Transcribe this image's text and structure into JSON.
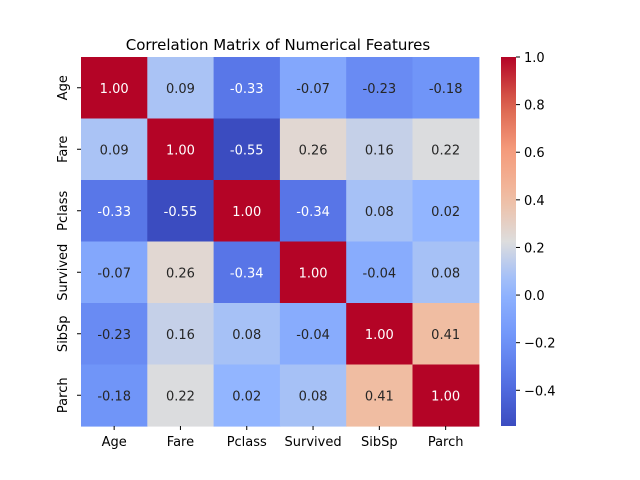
{
  "chart_data": {
    "type": "heatmap",
    "title": "Correlation Matrix of Numerical Features",
    "xlabel": "",
    "ylabel": "",
    "x_categories": [
      "Age",
      "Fare",
      "Pclass",
      "Survived",
      "SibSp",
      "Parch"
    ],
    "y_categories": [
      "Age",
      "Fare",
      "Pclass",
      "Survived",
      "SibSp",
      "Parch"
    ],
    "values": [
      [
        1.0,
        0.09,
        -0.33,
        -0.07,
        -0.23,
        -0.18
      ],
      [
        0.09,
        1.0,
        -0.55,
        0.26,
        0.16,
        0.22
      ],
      [
        -0.33,
        -0.55,
        1.0,
        -0.34,
        0.08,
        0.02
      ],
      [
        -0.07,
        0.26,
        -0.34,
        1.0,
        -0.04,
        0.08
      ],
      [
        -0.23,
        0.16,
        0.08,
        -0.04,
        1.0,
        0.41
      ],
      [
        -0.18,
        0.22,
        0.02,
        0.08,
        0.41,
        1.0
      ]
    ],
    "value_format": "2 decimals",
    "colormap": "coolwarm",
    "colorbar": {
      "range": [
        -0.55,
        1.0
      ],
      "ticks": [
        -0.4,
        -0.2,
        0.0,
        0.2,
        0.4,
        0.6,
        0.8,
        1.0
      ],
      "tick_labels": [
        "−0.4",
        "−0.2",
        "0.0",
        "0.2",
        "0.4",
        "0.6",
        "0.8",
        "1.0"
      ]
    },
    "grid": false,
    "legend": "colorbar-right"
  }
}
